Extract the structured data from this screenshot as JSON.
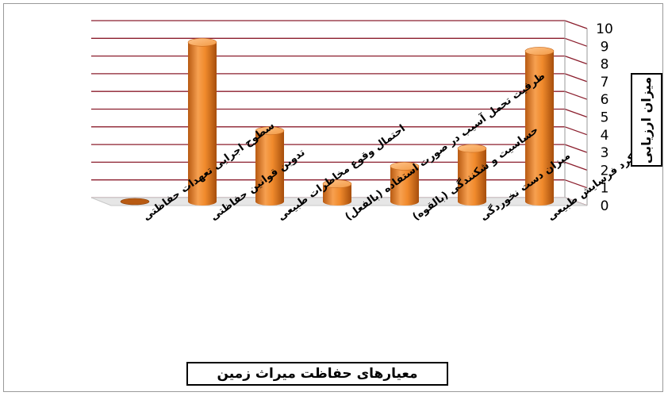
{
  "chart_data": {
    "type": "bar",
    "style": "3d-cylinder",
    "categories": [
      "سطوح اجرایی تعهدات حفاظتی",
      "تدوین قوانین حفاظتی",
      "احتمال وقوع مخاطرات طبیعی",
      "ظرفیت تحمل آسیب در صورت استفاده (بالفعل)",
      "حساسیت و شکنندگی (بالقوه)",
      "میزان دست نخوردگی",
      "عملکرد فرسایش طبیعی"
    ],
    "values": [
      0,
      9,
      4,
      1,
      2,
      3,
      8.5
    ],
    "xlabel": "معیارهای حفاظت میراث زمین",
    "ylabel": "میزان ارزیابی",
    "ylim": [
      0,
      10
    ],
    "yticks": [
      "0",
      "1",
      "2",
      "3",
      "4",
      "5",
      "6",
      "7",
      "8",
      "9",
      "10"
    ],
    "grid": true,
    "colors": {
      "bar": "#F08A2C",
      "grid": "#8B1E2D"
    }
  }
}
